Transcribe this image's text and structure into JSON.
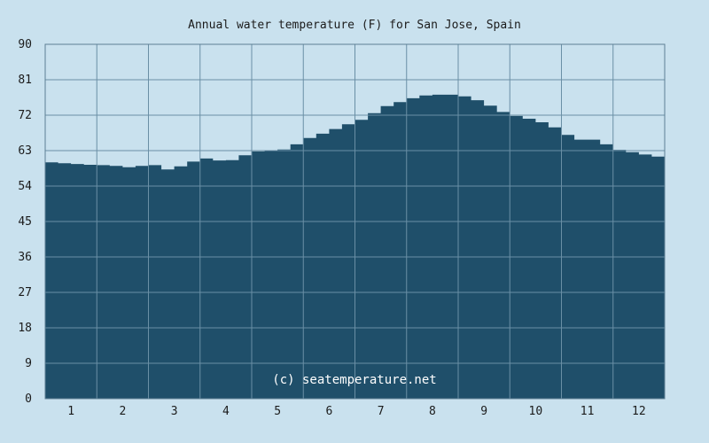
{
  "colors": {
    "background": "#c9e1ee",
    "area_fill": "#1f4f6a",
    "grid": "#6a8fa5",
    "frame": "#5d7f94",
    "text": "#1b1b1b",
    "watermark": "#ffffff"
  },
  "watermark": "(c) seatemperature.net",
  "chart_data": {
    "type": "area",
    "title": "Annual water temperature (F) for San Jose, Spain",
    "xlabel": "",
    "ylabel": "",
    "x_tick_labels": [
      "1",
      "2",
      "3",
      "4",
      "5",
      "6",
      "7",
      "8",
      "9",
      "10",
      "11",
      "12"
    ],
    "y_tick_labels": [
      "0",
      "9",
      "18",
      "27",
      "36",
      "45",
      "54",
      "63",
      "72",
      "81",
      "90"
    ],
    "xlim": [
      0.5,
      12.5
    ],
    "ylim": [
      0,
      90
    ],
    "grid": true,
    "legend": "none",
    "series": [
      {
        "x": [
          0.5,
          0.75,
          1.0,
          1.25,
          1.5,
          1.75,
          2.0,
          2.25,
          2.5,
          2.75,
          3.0,
          3.25,
          3.5,
          3.75,
          4.0,
          4.25,
          4.5,
          4.75,
          5.0,
          5.25,
          5.5,
          5.75,
          6.0,
          6.25,
          6.5,
          6.75,
          7.0,
          7.25,
          7.5,
          7.75,
          8.0,
          8.25,
          8.5,
          8.75,
          9.0,
          9.25,
          9.5,
          9.75,
          10.0,
          10.25,
          10.5,
          10.75,
          11.0,
          11.25,
          11.5,
          11.75,
          12.0,
          12.25,
          12.5
        ],
        "y": [
          60.0,
          59.8,
          59.6,
          59.4,
          59.3,
          59.1,
          58.8,
          59.1,
          59.3,
          58.2,
          59.0,
          60.2,
          61.0,
          60.5,
          60.6,
          61.8,
          62.8,
          63.0,
          63.3,
          64.6,
          66.2,
          67.3,
          68.5,
          69.7,
          70.8,
          72.5,
          74.3,
          75.3,
          76.3,
          77.0,
          77.2,
          77.2,
          76.8,
          75.8,
          74.4,
          72.8,
          71.8,
          71.1,
          70.2,
          68.9,
          67.0,
          65.8,
          65.8,
          64.6,
          63.2,
          62.6,
          62.0,
          61.5,
          61.3
        ]
      }
    ]
  }
}
